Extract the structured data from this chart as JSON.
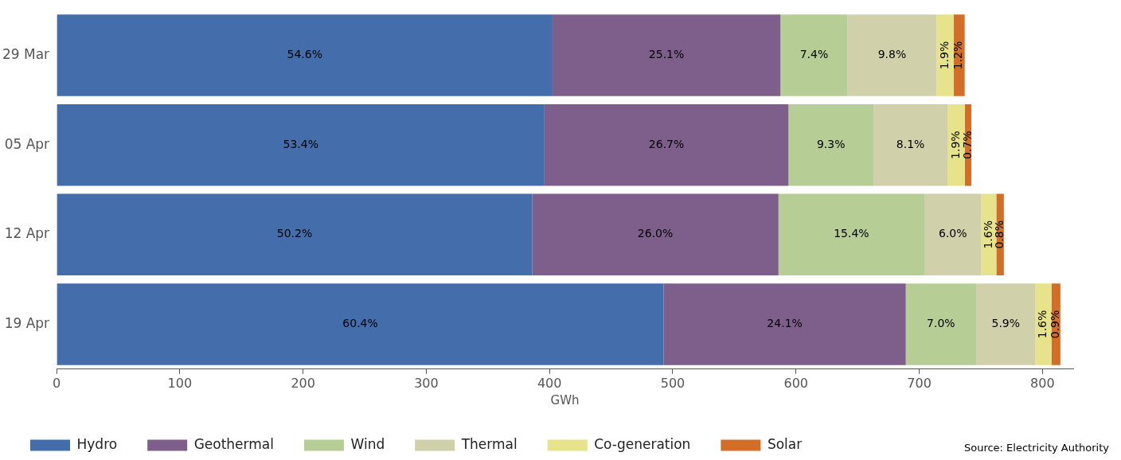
{
  "chart_data": {
    "type": "bar",
    "orientation": "horizontal",
    "stacked": true,
    "xlabel": "GWh",
    "categories": [
      "29 Mar",
      "05 Apr",
      "12 Apr",
      "19 Apr"
    ],
    "series": [
      {
        "name": "Hydro",
        "color": "#436dab",
        "values": [
          402.4,
          395.9,
          385.9,
          492.6
        ]
      },
      {
        "name": "Geothermal",
        "color": "#7e5e8a",
        "values": [
          185.0,
          198.0,
          199.9,
          196.5
        ]
      },
      {
        "name": "Wind",
        "color": "#b6ce95",
        "values": [
          54.5,
          69.0,
          118.4,
          57.1
        ]
      },
      {
        "name": "Thermal",
        "color": "#d0d0ab",
        "values": [
          72.2,
          60.1,
          46.1,
          48.1
        ]
      },
      {
        "name": "Co-generation",
        "color": "#e6e38a",
        "values": [
          14.0,
          14.1,
          12.3,
          13.0
        ]
      },
      {
        "name": "Solar",
        "color": "#d36e29",
        "values": [
          8.8,
          5.2,
          6.1,
          7.3
        ]
      }
    ],
    "xlim": [
      0,
      825
    ],
    "xticks": [
      0,
      100,
      200,
      300,
      400,
      500,
      600,
      700,
      800
    ],
    "grid": false,
    "legend": "bottom",
    "annotations": [
      "54.6%",
      "25.1%",
      "7.4%",
      "9.8%",
      "1.9%",
      "1.2%",
      "53.4%",
      "26.7%",
      "9.3%",
      "8.1%",
      "1.9%",
      "0.7%",
      "50.2%",
      "26.0%",
      "15.4%",
      "6.0%",
      "1.6%",
      "0.8%",
      "60.4%",
      "24.1%",
      "7.0%",
      "5.9%",
      "1.6%",
      "0.9%",
      "Source: Electricity Authority"
    ]
  }
}
